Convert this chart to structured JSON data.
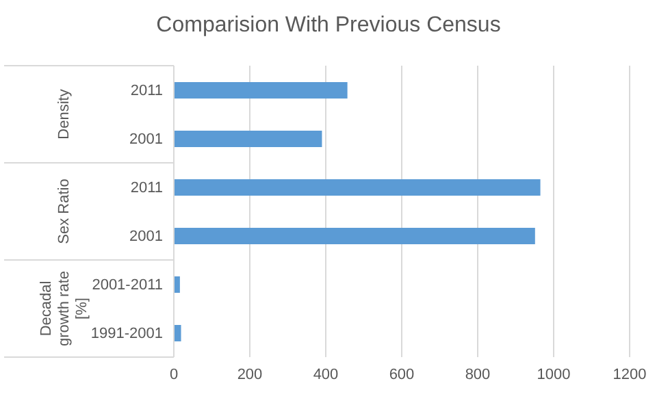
{
  "chart_data": {
    "type": "bar",
    "orientation": "horizontal",
    "title": "Comparision With Previous Census",
    "categories": [
      "2011",
      "2001",
      "2011",
      "2001",
      "2001-2011",
      "1991-2001"
    ],
    "series": [
      {
        "color": "#5b9bd5",
        "values": [
          457,
          390,
          965,
          951,
          16,
          19
        ]
      }
    ],
    "annotations": [
      "Density",
      "Sex Ratio",
      "Decadal growth rate [%]"
    ],
    "xlim": [
      0,
      1200
    ],
    "xticks": [
      0,
      200,
      400,
      600,
      800,
      1000,
      1200
    ],
    "grid": "x"
  }
}
